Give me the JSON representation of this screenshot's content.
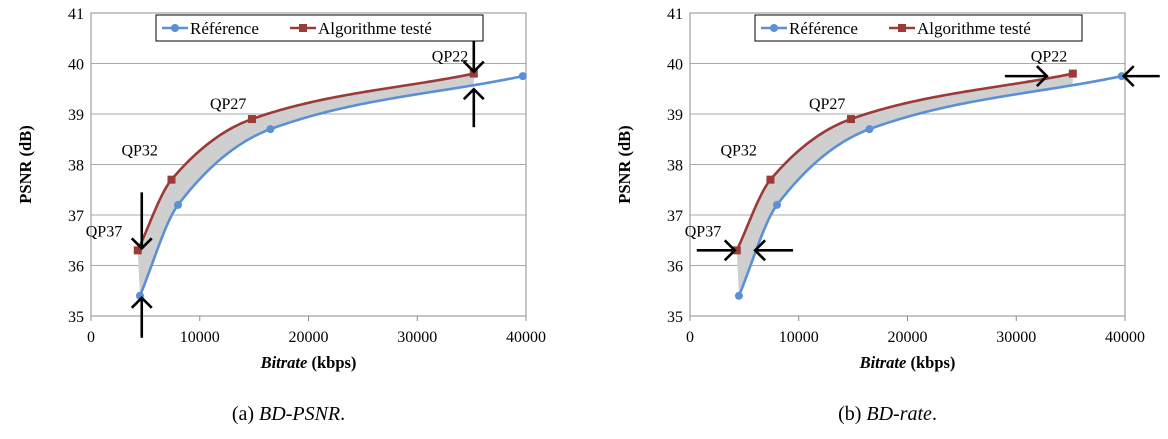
{
  "chart_data": [
    {
      "type": "line",
      "caption": {
        "prefix": "(a) ",
        "italic": "BD-PSNR",
        "suffix": "."
      },
      "xlabel": {
        "italic": "Bitrate",
        "rest": " (kbps)"
      },
      "ylabel": "PSNR (dB)",
      "xlim": [
        0,
        40000
      ],
      "ylim": [
        35,
        41
      ],
      "xticks": [
        0,
        10000,
        20000,
        30000,
        40000
      ],
      "yticks": [
        35,
        36,
        37,
        38,
        39,
        40,
        41
      ],
      "grid": true,
      "legend_position": "top",
      "series": [
        {
          "name": "Référence",
          "color": "#5b8fd6",
          "marker": "circle",
          "points": [
            [
              4500,
              35.4
            ],
            [
              8000,
              37.2
            ],
            [
              16500,
              38.7
            ],
            [
              39700,
              39.75
            ]
          ]
        },
        {
          "name": "Algorithme testé",
          "color": "#9b3a36",
          "marker": "square",
          "points": [
            [
              4300,
              36.3
            ],
            [
              7400,
              37.7
            ],
            [
              14800,
              38.9
            ],
            [
              35200,
              39.8
            ]
          ]
        }
      ],
      "labels": [
        {
          "text": "QP37",
          "x": 4300,
          "y": 36.3
        },
        {
          "text": "QP32",
          "x": 7400,
          "y": 37.7
        },
        {
          "text": "QP27",
          "x": 14800,
          "y": 38.9
        },
        {
          "text": "QP22",
          "x": 35200,
          "y": 39.8
        }
      ],
      "annotation": "vertical-gap",
      "shade_color": "#cfcfcf"
    },
    {
      "type": "line",
      "caption": {
        "prefix": "(b) ",
        "italic": "BD-rate",
        "suffix": "."
      },
      "xlabel": {
        "italic": "Bitrate",
        "rest": " (kbps)"
      },
      "ylabel": "PSNR (dB)",
      "xlim": [
        0,
        40000
      ],
      "ylim": [
        35,
        41
      ],
      "xticks": [
        0,
        10000,
        20000,
        30000,
        40000
      ],
      "yticks": [
        35,
        36,
        37,
        38,
        39,
        40,
        41
      ],
      "grid": true,
      "legend_position": "top",
      "series": [
        {
          "name": "Référence",
          "color": "#5b8fd6",
          "marker": "circle",
          "points": [
            [
              4500,
              35.4
            ],
            [
              8000,
              37.2
            ],
            [
              16500,
              38.7
            ],
            [
              39700,
              39.75
            ]
          ]
        },
        {
          "name": "Algorithme testé",
          "color": "#9b3a36",
          "marker": "square",
          "points": [
            [
              4300,
              36.3
            ],
            [
              7400,
              37.7
            ],
            [
              14800,
              38.9
            ],
            [
              35200,
              39.8
            ]
          ]
        }
      ],
      "labels": [
        {
          "text": "QP37",
          "x": 4300,
          "y": 36.3
        },
        {
          "text": "QP32",
          "x": 7400,
          "y": 37.7
        },
        {
          "text": "QP27",
          "x": 14800,
          "y": 38.9
        },
        {
          "text": "QP22",
          "x": 35200,
          "y": 39.8
        }
      ],
      "annotation": "horizontal-gap",
      "shade_color": "#cfcfcf"
    }
  ]
}
